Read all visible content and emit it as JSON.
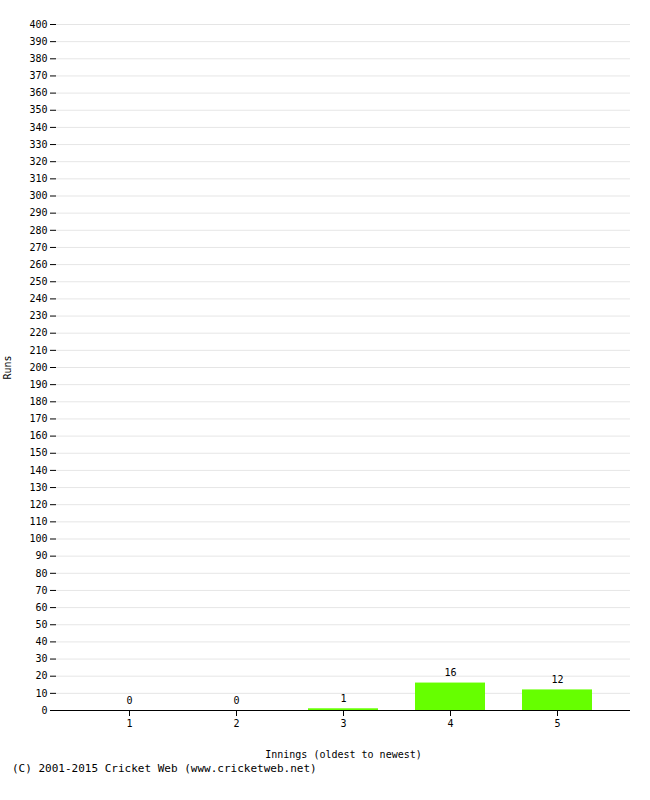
{
  "chart_data": {
    "type": "bar",
    "xlabel": "Innings (oldest to newest)",
    "ylabel": "Runs",
    "categories": [
      1,
      2,
      3,
      4,
      5
    ],
    "values": [
      0,
      0,
      1,
      16,
      12
    ],
    "color": "#66ff00",
    "data_labels": true,
    "ylim": [
      0,
      400
    ],
    "yticks": [
      0,
      10,
      20,
      30,
      40,
      50,
      60,
      70,
      80,
      90,
      100,
      110,
      120,
      130,
      140,
      150,
      160,
      170,
      180,
      190,
      200,
      210,
      220,
      230,
      240,
      250,
      260,
      270,
      280,
      290,
      300,
      310,
      320,
      330,
      340,
      350,
      360,
      370,
      380,
      390,
      400
    ],
    "grid": true,
    "annotations": [
      "(C) 2001-2015 Cricket Web (www.cricketweb.net)"
    ]
  }
}
